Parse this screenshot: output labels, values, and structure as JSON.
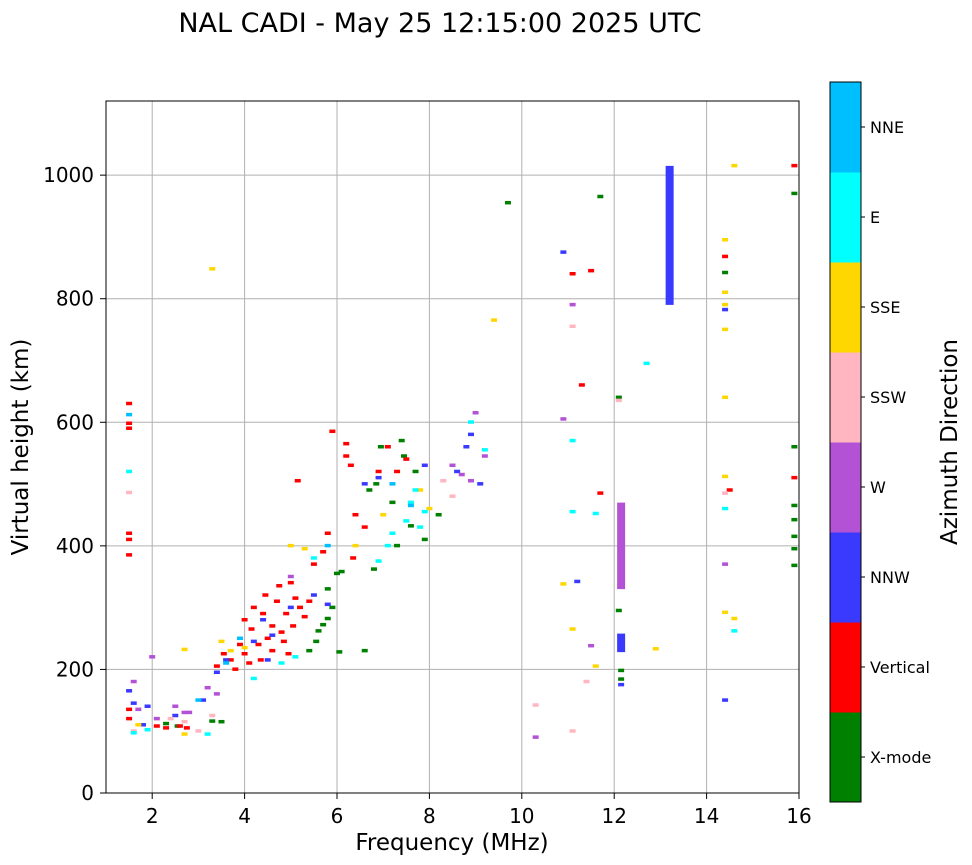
{
  "chart_data": {
    "type": "scatter",
    "title": "NAL CADI - May 25 12:15:00 2025 UTC",
    "xlabel": "Frequency (MHz)",
    "ylabel": "Virtual height (km)",
    "xlim": [
      1,
      16
    ],
    "ylim": [
      0,
      1120
    ],
    "xticks": [
      2,
      4,
      6,
      8,
      10,
      12,
      14,
      16
    ],
    "yticks": [
      0,
      200,
      400,
      600,
      800,
      1000
    ],
    "grid": true,
    "colorbar": {
      "label": "Azimuth Direction",
      "categories": [
        {
          "name": "X-mode",
          "color": "#008000"
        },
        {
          "name": "Vertical",
          "color": "#ff0000"
        },
        {
          "name": "NNW",
          "color": "#3a3aff"
        },
        {
          "name": "W",
          "color": "#b452d6"
        },
        {
          "name": "SSW",
          "color": "#ffb6c1"
        },
        {
          "name": "SSE",
          "color": "#ffd700"
        },
        {
          "name": "E",
          "color": "#00ffff"
        },
        {
          "name": "NNE",
          "color": "#00bfff"
        }
      ]
    },
    "series": [
      {
        "name": "X-mode",
        "points": [
          [
            2.3,
            112
          ],
          [
            2.55,
            108
          ],
          [
            3.3,
            116
          ],
          [
            3.5,
            115
          ],
          [
            5.4,
            230
          ],
          [
            5.55,
            245
          ],
          [
            5.6,
            262
          ],
          [
            5.7,
            272
          ],
          [
            5.8,
            282
          ],
          [
            5.9,
            300
          ],
          [
            5.8,
            330
          ],
          [
            6.0,
            355
          ],
          [
            6.1,
            358
          ],
          [
            6.05,
            228
          ],
          [
            6.6,
            230
          ],
          [
            6.8,
            362
          ],
          [
            6.7,
            490
          ],
          [
            6.85,
            500
          ],
          [
            6.95,
            560
          ],
          [
            7.2,
            470
          ],
          [
            7.3,
            400
          ],
          [
            7.4,
            570
          ],
          [
            7.45,
            545
          ],
          [
            7.6,
            432
          ],
          [
            7.7,
            520
          ],
          [
            7.9,
            410
          ],
          [
            8.2,
            450
          ],
          [
            9.7,
            955
          ],
          [
            11.7,
            965
          ],
          [
            12.1,
            640
          ],
          [
            12.1,
            295
          ],
          [
            12.15,
            198
          ],
          [
            12.15,
            184
          ],
          [
            14.4,
            842
          ],
          [
            15.9,
            970
          ],
          [
            15.9,
            560
          ],
          [
            15.9,
            465
          ],
          [
            15.9,
            442
          ],
          [
            15.9,
            415
          ],
          [
            15.9,
            395
          ],
          [
            15.9,
            368
          ]
        ]
      },
      {
        "name": "Vertical",
        "points": [
          [
            1.5,
            630
          ],
          [
            1.5,
            598
          ],
          [
            1.5,
            590
          ],
          [
            1.5,
            420
          ],
          [
            1.5,
            410
          ],
          [
            1.5,
            385
          ],
          [
            1.5,
            135
          ],
          [
            1.5,
            120
          ],
          [
            2.1,
            108
          ],
          [
            2.3,
            105
          ],
          [
            2.6,
            108
          ],
          [
            2.75,
            105
          ],
          [
            3.4,
            205
          ],
          [
            3.55,
            225
          ],
          [
            3.7,
            215
          ],
          [
            3.8,
            200
          ],
          [
            3.9,
            240
          ],
          [
            4.0,
            280
          ],
          [
            4.0,
            225
          ],
          [
            4.1,
            210
          ],
          [
            4.15,
            265
          ],
          [
            4.2,
            300
          ],
          [
            4.3,
            240
          ],
          [
            4.35,
            215
          ],
          [
            4.4,
            290
          ],
          [
            4.45,
            320
          ],
          [
            4.5,
            250
          ],
          [
            4.6,
            270
          ],
          [
            4.6,
            230
          ],
          [
            4.7,
            310
          ],
          [
            4.75,
            335
          ],
          [
            4.8,
            260
          ],
          [
            4.85,
            245
          ],
          [
            4.9,
            290
          ],
          [
            4.95,
            225
          ],
          [
            5.0,
            340
          ],
          [
            5.05,
            270
          ],
          [
            5.1,
            315
          ],
          [
            5.15,
            505
          ],
          [
            5.2,
            300
          ],
          [
            5.3,
            285
          ],
          [
            5.4,
            310
          ],
          [
            5.5,
            370
          ],
          [
            5.7,
            390
          ],
          [
            5.8,
            420
          ],
          [
            5.9,
            585
          ],
          [
            6.2,
            565
          ],
          [
            6.2,
            545
          ],
          [
            6.3,
            530
          ],
          [
            6.35,
            380
          ],
          [
            6.4,
            450
          ],
          [
            6.6,
            430
          ],
          [
            6.9,
            520
          ],
          [
            7.1,
            560
          ],
          [
            7.3,
            520
          ],
          [
            7.5,
            540
          ],
          [
            11.1,
            840
          ],
          [
            11.3,
            660
          ],
          [
            11.5,
            845
          ],
          [
            11.7,
            485
          ],
          [
            13.2,
            1000
          ],
          [
            13.2,
            930
          ],
          [
            14.4,
            868
          ],
          [
            14.5,
            490
          ],
          [
            15.9,
            1015
          ],
          [
            15.9,
            510
          ]
        ]
      },
      {
        "name": "NNW",
        "points": [
          [
            1.5,
            165
          ],
          [
            1.6,
            145
          ],
          [
            1.8,
            110
          ],
          [
            1.9,
            140
          ],
          [
            2.5,
            125
          ],
          [
            3.1,
            150
          ],
          [
            3.4,
            195
          ],
          [
            3.6,
            215
          ],
          [
            4.2,
            245
          ],
          [
            4.4,
            280
          ],
          [
            4.5,
            215
          ],
          [
            4.6,
            255
          ],
          [
            5.0,
            300
          ],
          [
            5.5,
            320
          ],
          [
            5.8,
            305
          ],
          [
            6.6,
            500
          ],
          [
            6.9,
            510
          ],
          [
            7.9,
            530
          ],
          [
            8.6,
            520
          ],
          [
            8.8,
            560
          ],
          [
            8.9,
            580
          ],
          [
            9.1,
            500
          ],
          [
            10.9,
            875
          ],
          [
            11.2,
            342
          ],
          [
            12.15,
            250
          ],
          [
            12.15,
            235
          ],
          [
            12.15,
            175
          ],
          [
            13.2,
            1010
          ],
          [
            13.2,
            950
          ],
          [
            13.2,
            900
          ],
          [
            13.2,
            840
          ],
          [
            13.2,
            795
          ],
          [
            14.4,
            782
          ],
          [
            14.4,
            150
          ]
        ]
      },
      {
        "name": "W",
        "points": [
          [
            1.6,
            180
          ],
          [
            1.7,
            135
          ],
          [
            2.0,
            220
          ],
          [
            2.1,
            120
          ],
          [
            2.5,
            140
          ],
          [
            2.7,
            130
          ],
          [
            2.8,
            130
          ],
          [
            3.2,
            170
          ],
          [
            3.4,
            160
          ],
          [
            5.0,
            350
          ],
          [
            8.5,
            530
          ],
          [
            8.7,
            515
          ],
          [
            8.9,
            505
          ],
          [
            9.0,
            615
          ],
          [
            9.2,
            545
          ],
          [
            10.3,
            90
          ],
          [
            10.9,
            605
          ],
          [
            11.1,
            790
          ],
          [
            11.5,
            238
          ],
          [
            12.15,
            455
          ],
          [
            12.15,
            420
          ],
          [
            12.15,
            390
          ],
          [
            12.15,
            345
          ],
          [
            13.2,
            870
          ],
          [
            13.2,
            855
          ],
          [
            14.4,
            370
          ]
        ]
      },
      {
        "name": "SSW",
        "points": [
          [
            1.5,
            486
          ],
          [
            1.6,
            100
          ],
          [
            2.4,
            120
          ],
          [
            2.7,
            115
          ],
          [
            3.0,
            100
          ],
          [
            3.3,
            125
          ],
          [
            8.3,
            505
          ],
          [
            8.5,
            480
          ],
          [
            10.3,
            142
          ],
          [
            11.1,
            755
          ],
          [
            11.1,
            100
          ],
          [
            11.4,
            180
          ],
          [
            12.1,
            635
          ],
          [
            14.4,
            485
          ]
        ]
      },
      {
        "name": "SSE",
        "points": [
          [
            1.7,
            110
          ],
          [
            2.7,
            95
          ],
          [
            2.7,
            232
          ],
          [
            3.3,
            848
          ],
          [
            3.5,
            245
          ],
          [
            3.7,
            230
          ],
          [
            4.0,
            235
          ],
          [
            5.0,
            400
          ],
          [
            5.3,
            395
          ],
          [
            6.4,
            400
          ],
          [
            7.0,
            450
          ],
          [
            7.8,
            490
          ],
          [
            8.0,
            460
          ],
          [
            9.4,
            765
          ],
          [
            10.9,
            338
          ],
          [
            11.1,
            265
          ],
          [
            11.6,
            205
          ],
          [
            12.9,
            233
          ],
          [
            14.4,
            895
          ],
          [
            14.4,
            810
          ],
          [
            14.4,
            790
          ],
          [
            14.4,
            750
          ],
          [
            14.4,
            640
          ],
          [
            14.4,
            512
          ],
          [
            14.4,
            292
          ],
          [
            14.6,
            1015
          ],
          [
            14.6,
            282
          ]
        ]
      },
      {
        "name": "E",
        "points": [
          [
            1.5,
            520
          ],
          [
            1.6,
            97
          ],
          [
            1.9,
            102
          ],
          [
            3.2,
            95
          ],
          [
            4.2,
            185
          ],
          [
            4.8,
            210
          ],
          [
            5.1,
            220
          ],
          [
            5.5,
            380
          ],
          [
            6.9,
            375
          ],
          [
            7.1,
            400
          ],
          [
            7.2,
            420
          ],
          [
            7.5,
            440
          ],
          [
            7.6,
            470
          ],
          [
            7.7,
            490
          ],
          [
            7.8,
            430
          ],
          [
            7.9,
            455
          ],
          [
            8.9,
            600
          ],
          [
            9.2,
            555
          ],
          [
            11.1,
            570
          ],
          [
            11.1,
            455
          ],
          [
            11.6,
            452
          ],
          [
            12.7,
            695
          ],
          [
            14.4,
            460
          ],
          [
            14.6,
            262
          ]
        ]
      },
      {
        "name": "NNE",
        "points": [
          [
            1.5,
            612
          ],
          [
            3.0,
            150
          ],
          [
            3.6,
            210
          ],
          [
            3.9,
            250
          ],
          [
            5.8,
            400
          ],
          [
            7.2,
            500
          ],
          [
            7.6,
            465
          ]
        ]
      }
    ],
    "columns": [
      {
        "x": 12.15,
        "y0": 330,
        "y1": 470,
        "series": "W"
      },
      {
        "x": 12.15,
        "y0": 228,
        "y1": 258,
        "series": "NNW"
      },
      {
        "x": 13.2,
        "y0": 790,
        "y1": 1015,
        "series": "NNW"
      }
    ]
  }
}
